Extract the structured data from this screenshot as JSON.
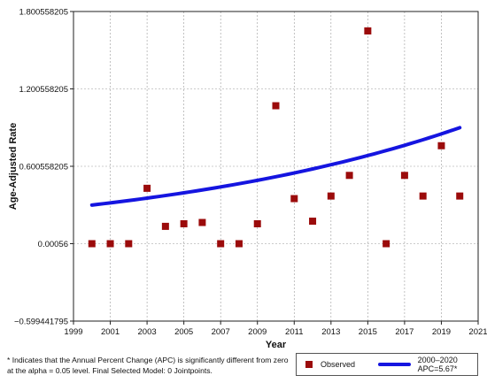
{
  "chart_data": {
    "type": "scatter",
    "xlabel": "Year",
    "ylabel": "Age-Adjusted Rate",
    "xlim": [
      1999,
      2021
    ],
    "ylim": [
      -0.599441795,
      1.800558205
    ],
    "x_ticks": [
      "1999",
      "2001",
      "2003",
      "2005",
      "2007",
      "2009",
      "2011",
      "2013",
      "2015",
      "2017",
      "2019",
      "2021"
    ],
    "y_ticks": [
      "−0.599441795",
      "0.00056",
      "0.600558205",
      "1.200558205",
      "1.800558205"
    ],
    "grid": true,
    "series": [
      {
        "name": "Observed",
        "kind": "points",
        "color": "#9b0b0b",
        "x": [
          2000,
          2001,
          2002,
          2003,
          2004,
          2005,
          2006,
          2007,
          2008,
          2009,
          2010,
          2011,
          2012,
          2013,
          2014,
          2015,
          2016,
          2017,
          2018,
          2019,
          2020
        ],
        "y": [
          0.00056,
          0.00056,
          0.00056,
          0.43,
          0.135,
          0.155,
          0.165,
          0.00056,
          0.00056,
          0.155,
          1.07,
          0.35,
          0.175,
          0.37,
          0.53,
          1.65,
          0.00056,
          0.53,
          0.37,
          0.76,
          0.37
        ]
      },
      {
        "name": "2000–2020 APC=5.67*",
        "kind": "line",
        "color": "#1515e0",
        "apc_percent": 5.67,
        "x_start": 2000,
        "x_end": 2020,
        "y_start": 0.3,
        "y_end": 0.9
      }
    ]
  },
  "footnote": {
    "line1": "*  Indicates that the Annual Percent Change (APC) is significantly different from zero",
    "line2": "at the alpha = 0.05 level. Final Selected Model: 0 Jointpoints."
  },
  "legend": {
    "observed_label": "Observed",
    "trend_label": "2000–2020 APC=5.67*"
  }
}
